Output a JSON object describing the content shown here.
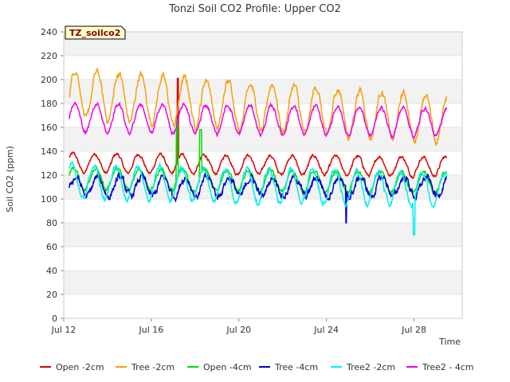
{
  "chart_data": {
    "type": "line",
    "title": "Tonzi Soil CO2 Profile: Upper CO2",
    "xlabel": "Time",
    "ylabel": "Soil CO2 (ppm)",
    "annotation": "TZ_soilco2",
    "xlim": [
      12,
      30.2
    ],
    "ylim": [
      0,
      240
    ],
    "yticks": [
      0,
      20,
      40,
      60,
      80,
      100,
      120,
      140,
      160,
      180,
      200,
      220,
      240
    ],
    "xticks": [
      {
        "value": 12,
        "label": "Jul 12"
      },
      {
        "value": 16,
        "label": "Jul 16"
      },
      {
        "value": 20,
        "label": "Jul 20"
      },
      {
        "value": 24,
        "label": "Jul 24"
      },
      {
        "value": 28,
        "label": "Jul 28"
      }
    ],
    "legend_position": "bottom",
    "series": [
      {
        "name": "Open -2cm",
        "color": "#dd0000",
        "start": 12.25,
        "end": 29.5,
        "base": 130,
        "amp": 8,
        "phase": 0.42,
        "drift": -3,
        "noise": 1.2,
        "events": [
          {
            "t": 17.2,
            "v": 201,
            "w": 0.03
          }
        ]
      },
      {
        "name": "Tree -2cm",
        "color": "#f5a00e",
        "start": 12.25,
        "end": 29.5,
        "base": 188,
        "amp": 20,
        "phase": 0.52,
        "drift": -22,
        "noise": 2.5,
        "events": []
      },
      {
        "name": "Open -4cm",
        "color": "#00dd00",
        "start": 12.25,
        "end": 29.5,
        "base": 117,
        "amp": 9,
        "phase": 0.45,
        "drift": -4,
        "noise": 1.5,
        "events": [
          {
            "t": 17.17,
            "v": 165,
            "w": 0.04
          },
          {
            "t": 18.25,
            "v": 158,
            "w": 0.05
          }
        ]
      },
      {
        "name": "Tree -4cm",
        "color": "#0000cc",
        "start": 12.25,
        "end": 29.5,
        "base": 110,
        "amp": 8,
        "phase": 0.55,
        "drift": 0,
        "noise": 3,
        "events": [
          {
            "t": 24.9,
            "v": 80,
            "w": 0.02
          }
        ]
      },
      {
        "name": "Tree2 -2cm",
        "color": "#00eeee",
        "start": 12.25,
        "end": 29.5,
        "base": 114,
        "amp": 14,
        "phase": 0.38,
        "drift": -6,
        "noise": 2,
        "events": [
          {
            "t": 28.0,
            "v": 70,
            "w": 0.04
          }
        ]
      },
      {
        "name": "Tree2 - 4cm",
        "color": "#ee00ee",
        "start": 12.25,
        "end": 29.5,
        "base": 168,
        "amp": 12,
        "phase": 0.5,
        "drift": -4,
        "noise": 1.5,
        "events": []
      }
    ]
  }
}
